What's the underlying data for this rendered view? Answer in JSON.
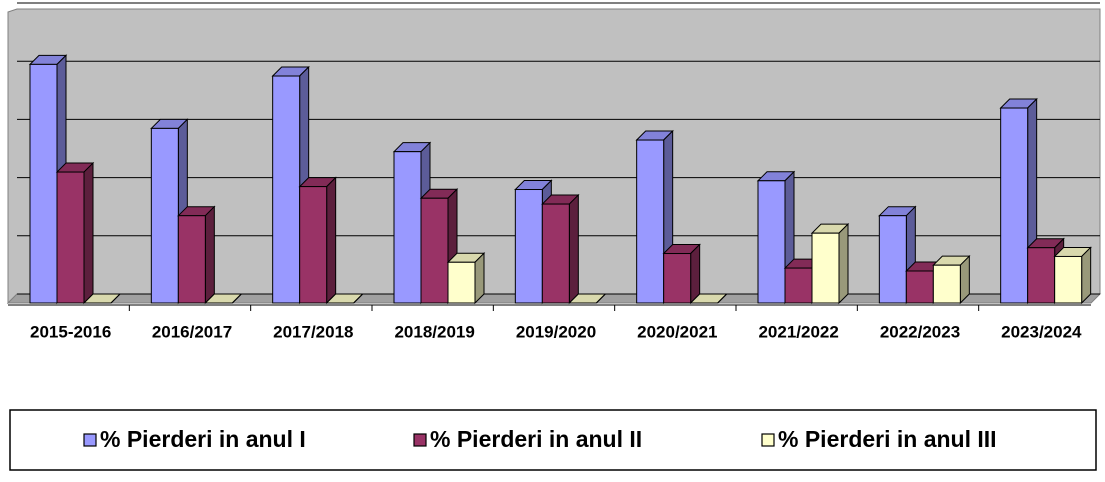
{
  "chart_data": {
    "type": "bar3d",
    "categories": [
      "2015-2016",
      "2016/2017",
      "2017/2018",
      "2018/2019",
      "2019/2020",
      "2020/2021",
      "2021/2022",
      "2022/2023",
      "2023/2024"
    ],
    "series": [
      {
        "name": "% Pierderi in anul I",
        "color": "#9999ff",
        "values": [
          4.1,
          3.0,
          3.9,
          2.6,
          1.95,
          2.8,
          2.1,
          1.5,
          3.35
        ]
      },
      {
        "name": "% Pierderi in anul II",
        "color": "#993366",
        "values": [
          2.25,
          1.5,
          2.0,
          1.8,
          1.7,
          0.85,
          0.6,
          0.55,
          0.95
        ]
      },
      {
        "name": "% Pierderi in anul III",
        "color": "#ffffcc",
        "values": [
          0,
          0,
          0,
          0.7,
          0,
          0,
          1.2,
          0.65,
          0.8
        ]
      }
    ],
    "ylim": [
      0,
      5
    ],
    "yticks": [
      0,
      1,
      2,
      3,
      4,
      5
    ],
    "grid": true
  }
}
